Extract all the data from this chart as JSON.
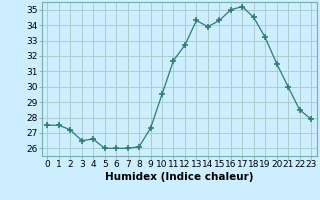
{
  "x": [
    0,
    1,
    2,
    3,
    4,
    5,
    6,
    7,
    8,
    9,
    10,
    11,
    12,
    13,
    14,
    15,
    16,
    17,
    18,
    19,
    20,
    21,
    22,
    23
  ],
  "y": [
    27.5,
    27.5,
    27.2,
    26.5,
    26.6,
    26.0,
    26.0,
    26.0,
    26.1,
    27.3,
    29.5,
    31.7,
    32.7,
    34.3,
    33.9,
    34.3,
    35.0,
    35.2,
    34.5,
    33.2,
    31.5,
    30.0,
    28.5,
    27.9
  ],
  "line_color": "#2e7d6e",
  "marker": "+",
  "marker_size": 4,
  "bg_color": "#cceeff",
  "grid_color": "#aacccc",
  "xlabel": "Humidex (Indice chaleur)",
  "ylim": [
    25.5,
    35.5
  ],
  "xlim": [
    -0.5,
    23.5
  ],
  "yticks": [
    26,
    27,
    28,
    29,
    30,
    31,
    32,
    33,
    34,
    35
  ],
  "xticks": [
    0,
    1,
    2,
    3,
    4,
    5,
    6,
    7,
    8,
    9,
    10,
    11,
    12,
    13,
    14,
    15,
    16,
    17,
    18,
    19,
    20,
    21,
    22,
    23
  ],
  "font_size": 6.5,
  "label_font_size": 7.5
}
